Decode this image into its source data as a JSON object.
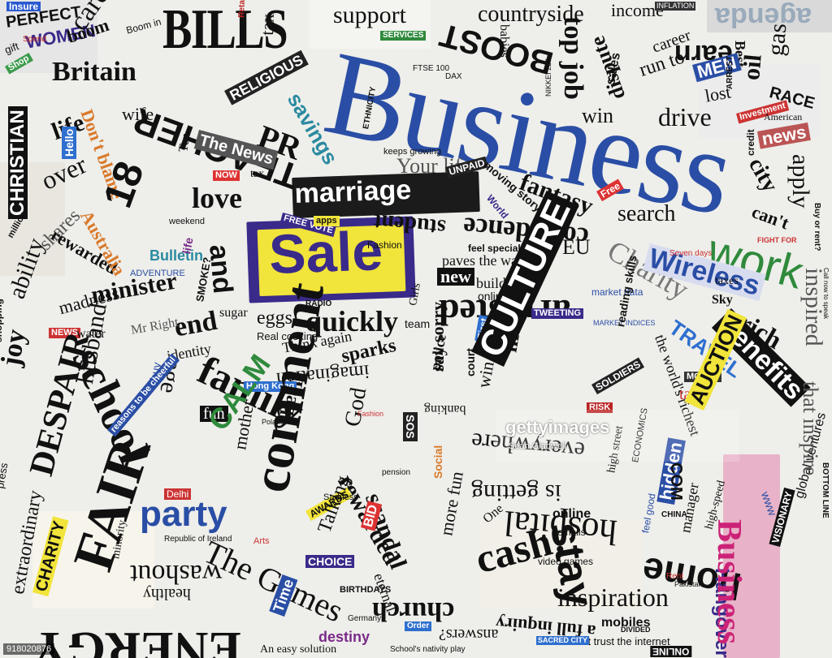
{
  "watermark": {
    "logo": "gettyimages",
    "credit": "Sean Gladwell"
  },
  "image_id": "918020876",
  "colors": {
    "business_blue": "#2a4ea5",
    "sale_yellow": "#f1e43a",
    "sale_purple": "#3a2a8a",
    "work_green": "#2f8a3c",
    "travel_blue": "#2e6fcf",
    "australia_orange": "#d9792a",
    "benefits_black": "#111111",
    "pink_business": "#e8b3c8"
  },
  "words": [
    "Insure",
    "PERFECT",
    "WOMEN",
    "Spend",
    "gift",
    "Shop",
    "boom",
    "care",
    "Boom in",
    "Britain",
    "BILLS",
    "Retail",
    "tax",
    "support",
    "SERVICES",
    "BOOST",
    "FTSE 100",
    "DAX",
    "NIKKEI 225",
    "countryside",
    "babies",
    "top job",
    "sales",
    "income",
    "INFLATION",
    "earn",
    "agenda",
    "gas",
    "oil",
    "RACE",
    "Best",
    "MEN",
    "career",
    "run to",
    "dispute",
    "win",
    "drive",
    "lost",
    "ARREST",
    "Investment",
    "news",
    "American",
    "Business",
    "CHRISTIAN",
    "TEACHER",
    "RELIGIOUS",
    "PR",
    "savings",
    "wife",
    "life",
    "Don't blame",
    "Hello",
    "over",
    "The News",
    "NOW",
    "Ten",
    "tax",
    "love",
    "18",
    "marriage",
    "student",
    "Your life",
    "UNPAID",
    "keeps growing",
    "ETHNICITY",
    "fantasy",
    "moving story",
    "World",
    "Free",
    "search",
    "work",
    "city",
    "credit",
    "apply",
    "can't",
    "FIGHT FOR",
    "Buy or rent?",
    "inspired",
    "million",
    "shares",
    "ability",
    "rewarded",
    "Australia",
    "weekend",
    "Bulletin",
    "ADVENTURE",
    "SMOKE?",
    "life",
    "and",
    "Sale",
    "FREE VOTE",
    "apps",
    "Fashion",
    "confidence",
    "EU",
    "Charity",
    "Wireless",
    "Seven days",
    "taxes",
    "Sky",
    "feel special",
    "paves the way to",
    "building",
    "new",
    "online",
    "minister",
    "madness",
    "shopping",
    "joy",
    "end",
    "sugar",
    "eggs",
    "quickly",
    "RADIO",
    "team",
    "Girls",
    "police",
    "arrested",
    "First",
    "lifeline",
    "TWEETING",
    "market data",
    "MARKET INDICES",
    "reading skills",
    "the world's richest",
    "TRAVEL",
    "rich",
    "benefits",
    "NEWS",
    "water",
    "Mr Right",
    "Real cooking",
    "Think again",
    "identity",
    "sparks",
    "imagination",
    "Iraq",
    "say sorry",
    "court",
    "win",
    "CULTURE",
    "MONEY",
    "talk",
    "school",
    "family",
    "age",
    "buy",
    "Hong Kong",
    "fun",
    "SOLDIERS",
    "RISK",
    "AUCTION",
    "DESPAIR",
    "husband",
    "reasons to be cheerful",
    "comment",
    "God",
    "banking",
    "SOS",
    "Social",
    "pension",
    "mother",
    "CALM",
    "Poland",
    "Fashion",
    "scandal",
    "rewarded",
    "everywhere",
    "is getting",
    "high street",
    "ECONOMICS",
    "CHINA",
    "hidden",
    "feel good",
    "stay",
    "manager",
    "high-speed",
    "COM",
    "global ventures",
    "VISIONARY",
    "www",
    "FAIR",
    "press",
    "extraordinary",
    "CHARITY",
    "party",
    "Delhi",
    "Arts",
    "Republic of Ireland",
    "The Games",
    "AWARDS",
    "CHOICE",
    "BID",
    "Talking",
    "Sadness",
    "eternal",
    "more fun",
    "One",
    "emails",
    "online",
    "cash!",
    "hospital",
    "home",
    "Hangover",
    "ENERGY",
    "washout",
    "healthy",
    "minority",
    "Time",
    "destiny",
    "Germany",
    "Order",
    "church",
    "answers?",
    "a full inquiry",
    "inspiration",
    "mobiles",
    "video games",
    "can't trust the internet",
    "ONLINE",
    "An easy solution",
    "School's nativity play",
    "Business",
    "DIVIDED",
    "SACRED CITY",
    "Rent",
    "Pakistan",
    "BIRTHDAYS",
    "that inspire",
    "BOTTOM LINE",
    "Call now to speak"
  ]
}
